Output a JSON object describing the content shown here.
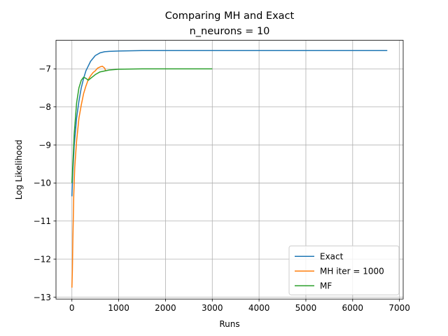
{
  "chart_data": {
    "type": "line",
    "title": "Comparing MH and Exact",
    "subtitle": "n_neurons = 10",
    "xlabel": "Runs",
    "ylabel": "Log Likelihood",
    "xlim": [
      -340,
      7080
    ],
    "ylim": [
      -13.05,
      -6.25
    ],
    "xticks": [
      0,
      1000,
      2000,
      3000,
      4000,
      5000,
      6000,
      7000
    ],
    "yticks": [
      -13,
      -12,
      -11,
      -10,
      -9,
      -8,
      -7
    ],
    "xtick_labels": [
      "0",
      "1000",
      "2000",
      "3000",
      "4000",
      "5000",
      "6000",
      "7000"
    ],
    "ytick_labels": [
      "−13",
      "−12",
      "−11",
      "−10",
      "−9",
      "−8",
      "−7"
    ],
    "grid": true,
    "legend_position": "lower-right",
    "series": [
      {
        "name": "Exact",
        "color": "#1f77b4",
        "x": [
          0,
          20,
          50,
          100,
          150,
          200,
          250,
          300,
          400,
          500,
          600,
          700,
          800,
          1000,
          1500,
          2000,
          3000,
          4000,
          5000,
          6000,
          6740
        ],
        "y": [
          -10.35,
          -9.7,
          -9.0,
          -8.3,
          -7.85,
          -7.5,
          -7.25,
          -7.05,
          -6.8,
          -6.65,
          -6.58,
          -6.55,
          -6.54,
          -6.53,
          -6.52,
          -6.52,
          -6.52,
          -6.52,
          -6.52,
          -6.52,
          -6.52
        ]
      },
      {
        "name": "MH iter = 1000",
        "color": "#ff7f0e",
        "x": [
          0,
          10,
          20,
          40,
          60,
          100,
          150,
          200,
          250,
          300,
          350,
          400,
          450,
          500,
          550,
          600,
          650,
          700,
          720
        ],
        "y": [
          -12.75,
          -12.3,
          -11.5,
          -10.3,
          -9.6,
          -8.9,
          -8.3,
          -7.95,
          -7.65,
          -7.45,
          -7.28,
          -7.18,
          -7.1,
          -7.05,
          -6.98,
          -6.95,
          -6.93,
          -6.98,
          -7.05
        ]
      },
      {
        "name": "MF",
        "color": "#2ca02c",
        "x": [
          0,
          20,
          50,
          100,
          150,
          200,
          250,
          300,
          350,
          400,
          500,
          600,
          800,
          1000,
          1500,
          2000,
          2500,
          3000
        ],
        "y": [
          -10.0,
          -9.5,
          -8.7,
          -7.9,
          -7.5,
          -7.3,
          -7.22,
          -7.25,
          -7.3,
          -7.25,
          -7.15,
          -7.08,
          -7.03,
          -7.01,
          -7.0,
          -7.0,
          -7.0,
          -7.0
        ]
      }
    ]
  }
}
